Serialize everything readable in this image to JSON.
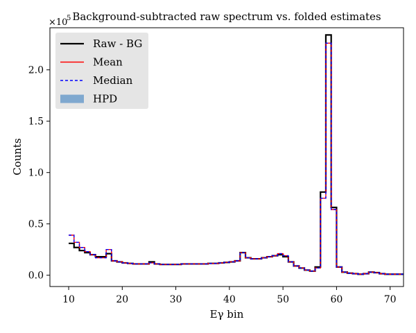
{
  "chart_data": {
    "type": "line",
    "title": "Background-subtracted raw spectrum vs. folded estimates",
    "xlabel": "Eγ bin",
    "ylabel": "Counts",
    "y_exponent_label": "×10",
    "y_exponent_power": "5",
    "xlim": [
      6.5,
      72.5
    ],
    "ylim": [
      -11000,
      241000
    ],
    "xticks": [
      10,
      20,
      30,
      40,
      50,
      60,
      70
    ],
    "xtick_labels": [
      "10",
      "20",
      "30",
      "40",
      "50",
      "60",
      "70"
    ],
    "yticks": [
      0,
      50000,
      100000,
      150000,
      200000
    ],
    "ytick_labels": [
      "0.0",
      "0.5",
      "1.0",
      "1.5",
      "2.0"
    ],
    "grid": false,
    "legend": "top-left",
    "bins_start": 10,
    "bin_width": 1,
    "series": [
      {
        "name": "Raw - BG",
        "style": "step",
        "color": "#000000",
        "values": [
          31000,
          27000,
          24000,
          22000,
          20000,
          18000,
          18000,
          21000,
          14000,
          13000,
          12000,
          11500,
          11000,
          11000,
          11000,
          13000,
          11000,
          10500,
          10500,
          10500,
          10500,
          11000,
          11000,
          11000,
          11000,
          11000,
          11500,
          11500,
          12000,
          12500,
          13000,
          14000,
          22000,
          17000,
          16000,
          16000,
          17000,
          18000,
          19000,
          20000,
          18000,
          13000,
          9000,
          7000,
          5000,
          4000,
          8000,
          81000,
          234000,
          66000,
          8000,
          3000,
          2000,
          1500,
          1000,
          1500,
          3000,
          2500,
          1500,
          1000,
          1000,
          1000,
          1000
        ]
      },
      {
        "name": "Mean",
        "style": "step",
        "color": "#ff0000",
        "values": [
          39000,
          32000,
          27000,
          23000,
          20000,
          17000,
          17000,
          25000,
          14000,
          13000,
          12000,
          11500,
          11000,
          11000,
          11000,
          12000,
          11000,
          10500,
          10500,
          10500,
          10500,
          11000,
          11000,
          11000,
          11000,
          11000,
          11500,
          11500,
          12000,
          12500,
          13000,
          14000,
          22000,
          17000,
          16000,
          16000,
          17000,
          18000,
          19000,
          21000,
          19000,
          13000,
          9000,
          7000,
          5000,
          4000,
          7000,
          75000,
          226000,
          64000,
          8000,
          3000,
          2000,
          1500,
          1000,
          1500,
          3000,
          2500,
          1500,
          1000,
          1000,
          1000,
          1000
        ]
      },
      {
        "name": "Median",
        "style": "step-dashed",
        "color": "#0000ff",
        "values": [
          39000,
          32000,
          27000,
          23000,
          20000,
          17000,
          17000,
          25000,
          14000,
          13000,
          12000,
          11500,
          11000,
          11000,
          11000,
          12000,
          11000,
          10500,
          10500,
          10500,
          10500,
          11000,
          11000,
          11000,
          11000,
          11000,
          11500,
          11500,
          12000,
          12500,
          13000,
          14000,
          22000,
          17000,
          16000,
          16000,
          17000,
          18000,
          19000,
          21000,
          19000,
          13000,
          9000,
          7000,
          5000,
          4000,
          7000,
          75000,
          226000,
          64000,
          8000,
          3000,
          2000,
          1500,
          1000,
          1500,
          3000,
          2500,
          1500,
          1000,
          1000,
          1000,
          1000
        ]
      },
      {
        "name": "HPD",
        "style": "band",
        "color": "#7fa8cf"
      }
    ]
  }
}
